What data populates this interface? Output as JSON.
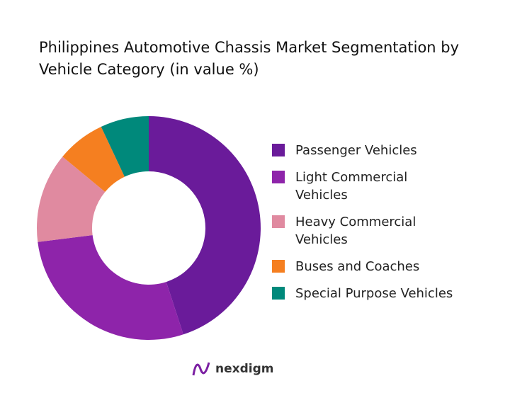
{
  "chart_data": {
    "type": "donut",
    "title": "Philippines Automotive Chassis Market Segmentation by Vehicle Category (in value %)",
    "categories": [
      "Passenger Vehicles",
      "Light Commercial Vehicles",
      "Heavy Commercial Vehicles",
      "Buses and Coaches",
      "Special Purpose Vehicles"
    ],
    "values": [
      45,
      28,
      13,
      7,
      7
    ],
    "colors": [
      "#6a1b9a",
      "#8e24aa",
      "#e08aa0",
      "#f57f20",
      "#00897b"
    ]
  },
  "logo": "nexdigm"
}
